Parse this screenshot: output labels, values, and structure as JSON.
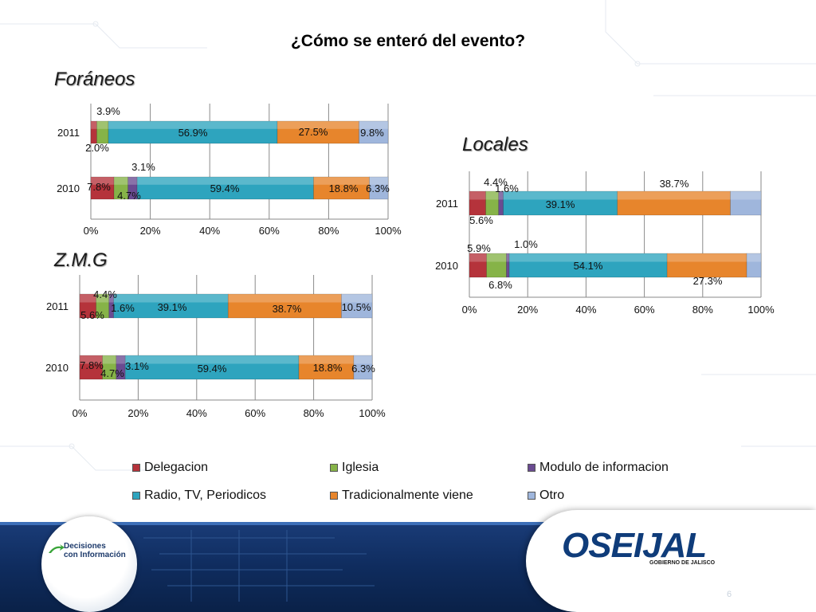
{
  "title": "¿Cómo se enteró del evento?",
  "colors": {
    "Delegacion": "#b5333b",
    "Iglesia": "#86b348",
    "Modulo de informacion": "#6a4b91",
    "Radio, TV, Periodicos": "#2ea4be",
    "Tradicionalmente viene": "#e7852c",
    "Otro": "#9fb6dc"
  },
  "legend": {
    "items": [
      {
        "label": "Delegacion",
        "color": "#b5333b"
      },
      {
        "label": "Iglesia",
        "color": "#86b348"
      },
      {
        "label": "Modulo de informacion",
        "color": "#6a4b91"
      },
      {
        "label": "Radio, TV, Periodicos",
        "color": "#2ea4be"
      },
      {
        "label": "Tradicionalmente viene",
        "color": "#e7852c"
      },
      {
        "label": "Otro",
        "color": "#9fb6dc"
      }
    ]
  },
  "chart_data": [
    {
      "type": "bar",
      "orientation": "horizontal-stacked-100",
      "title": "Foráneos",
      "categories": [
        "2011",
        "2010"
      ],
      "series": [
        {
          "name": "Delegacion",
          "values": [
            2.0,
            7.8
          ],
          "labels": [
            "2.0%",
            "7.8%"
          ]
        },
        {
          "name": "Iglesia",
          "values": [
            3.9,
            4.7
          ],
          "labels": [
            "3.9%",
            "4.7%"
          ]
        },
        {
          "name": "Modulo de informacion",
          "values": [
            0.0,
            3.1
          ],
          "labels": [
            "",
            "3.1%"
          ]
        },
        {
          "name": "Radio, TV, Periodicos",
          "values": [
            56.9,
            59.4
          ],
          "labels": [
            "56.9%",
            "59.4%"
          ]
        },
        {
          "name": "Tradicionalmente viene",
          "values": [
            27.5,
            18.8
          ],
          "labels": [
            "27.5%",
            "18.8%"
          ]
        },
        {
          "name": "Otro",
          "values": [
            9.8,
            6.3
          ],
          "labels": [
            "9.8%",
            "6.3%"
          ]
        }
      ],
      "xticks": [
        "0%",
        "20%",
        "40%",
        "60%",
        "80%",
        "100%"
      ],
      "xlim": [
        0,
        100
      ]
    },
    {
      "type": "bar",
      "orientation": "horizontal-stacked-100",
      "title": "Locales",
      "categories": [
        "2011",
        "2010"
      ],
      "series": [
        {
          "name": "Delegacion",
          "values": [
            5.6,
            5.9
          ],
          "labels": [
            "5.6%",
            "5.9%"
          ]
        },
        {
          "name": "Iglesia",
          "values": [
            4.4,
            6.8
          ],
          "labels": [
            "4.4%",
            "6.8%"
          ]
        },
        {
          "name": "Modulo de informacion",
          "values": [
            1.6,
            1.0
          ],
          "labels": [
            "1.6%",
            "1.0%"
          ]
        },
        {
          "name": "Radio, TV, Periodicos",
          "values": [
            39.1,
            54.1
          ],
          "labels": [
            "39.1%",
            "54.1%"
          ]
        },
        {
          "name": "Tradicionalmente viene",
          "values": [
            38.7,
            27.3
          ],
          "labels": [
            "38.7%",
            "27.3%"
          ]
        },
        {
          "name": "Otro",
          "values": [
            10.5,
            4.9
          ],
          "labels": [
            "",
            ""
          ]
        }
      ],
      "xticks": [
        "0%",
        "20%",
        "40%",
        "60%",
        "80%",
        "100%"
      ],
      "xlim": [
        0,
        100
      ]
    },
    {
      "type": "bar",
      "orientation": "horizontal-stacked-100",
      "title": "Z.M.G",
      "categories": [
        "2011",
        "2010"
      ],
      "series": [
        {
          "name": "Delegacion",
          "values": [
            5.6,
            7.8
          ],
          "labels": [
            "5.6%",
            "7.8%"
          ]
        },
        {
          "name": "Iglesia",
          "values": [
            4.4,
            4.7
          ],
          "labels": [
            "4.4%",
            "4.7%"
          ]
        },
        {
          "name": "Modulo de informacion",
          "values": [
            1.6,
            3.1
          ],
          "labels": [
            "1.6%",
            "3.1%"
          ]
        },
        {
          "name": "Radio, TV, Periodicos",
          "values": [
            39.1,
            59.4
          ],
          "labels": [
            "39.1%",
            "59.4%"
          ]
        },
        {
          "name": "Tradicionalmente viene",
          "values": [
            38.7,
            18.8
          ],
          "labels": [
            "38.7%",
            "18.8%"
          ]
        },
        {
          "name": "Otro",
          "values": [
            10.5,
            6.3
          ],
          "labels": [
            "10.5%",
            "6.3%"
          ]
        }
      ],
      "xticks": [
        "0%",
        "20%",
        "40%",
        "60%",
        "80%",
        "100%"
      ],
      "xlim": [
        0,
        100
      ]
    }
  ],
  "footer": {
    "left_logo": {
      "line1": "Decisiones",
      "line2": "con Información",
      "icon": "arrow-logo-icon"
    },
    "right_logo": {
      "text": "OSEIJAL",
      "subtitle": "GOBIERNO DE JALISCO"
    },
    "page_number": "6"
  }
}
